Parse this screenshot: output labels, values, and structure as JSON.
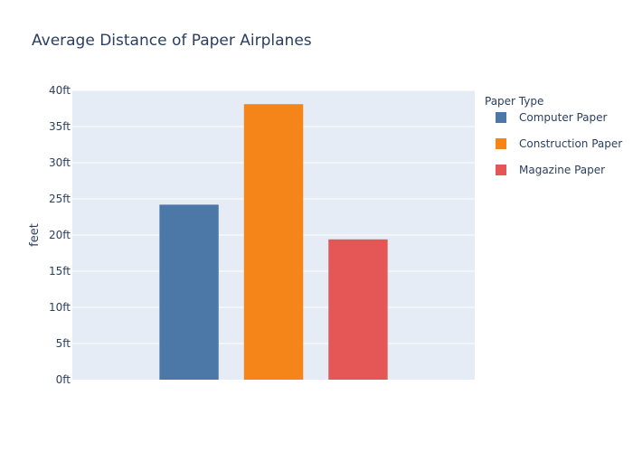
{
  "chart_data": {
    "type": "bar",
    "title": "Average Distance of Paper Airplanes",
    "xlabel": "",
    "ylabel": "feet",
    "tick_suffix": "ft",
    "ylim": [
      0,
      40
    ],
    "yticks": [
      0,
      5,
      10,
      15,
      20,
      25,
      30,
      35,
      40
    ],
    "grid": true,
    "legend_title": "Paper Type",
    "legend_position": "right",
    "series": [
      {
        "name": "Computer Paper",
        "value": 24.2,
        "color": "#4c78a8"
      },
      {
        "name": "Construction Paper",
        "value": 38.1,
        "color": "#f58518"
      },
      {
        "name": "Magazine Paper",
        "value": 19.4,
        "color": "#e45756"
      }
    ],
    "colors": {
      "plot_bg": "#e5ecf6",
      "grid": "#ffffff",
      "text": "#2a3f5f"
    }
  }
}
